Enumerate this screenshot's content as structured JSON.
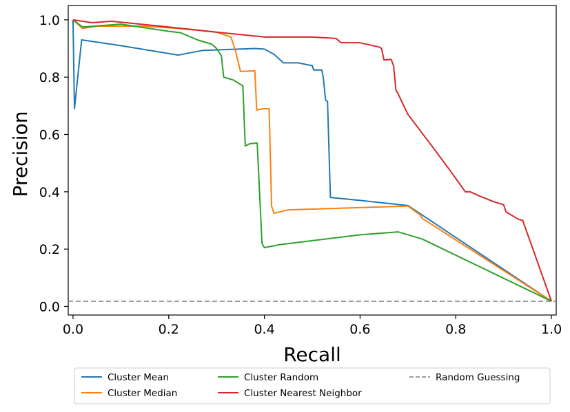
{
  "chart_data": {
    "type": "line",
    "xlabel": "Recall",
    "ylabel": "Precision",
    "xlim": [
      -0.01,
      1.01
    ],
    "ylim": [
      -0.03,
      1.05
    ],
    "xticks": [
      {
        "value": 0.0,
        "label": "0.0"
      },
      {
        "value": 0.2,
        "label": "0.2"
      },
      {
        "value": 0.4,
        "label": "0.4"
      },
      {
        "value": 0.6,
        "label": "0.6"
      },
      {
        "value": 0.8,
        "label": "0.8"
      },
      {
        "value": 1.0,
        "label": "1.0"
      }
    ],
    "yticks": [
      {
        "value": 0.0,
        "label": "0.0"
      },
      {
        "value": 0.2,
        "label": "0.2"
      },
      {
        "value": 0.4,
        "label": "0.4"
      },
      {
        "value": 0.6,
        "label": "0.6"
      },
      {
        "value": 0.8,
        "label": "0.8"
      },
      {
        "value": 1.0,
        "label": "1.0"
      }
    ],
    "grid": false,
    "legend_placement": "below",
    "series": [
      {
        "name": "Cluster Mean",
        "color": "#1f77b4",
        "dashed": false,
        "points": [
          [
            0.0,
            1.0
          ],
          [
            0.003,
            0.69
          ],
          [
            0.018,
            0.93
          ],
          [
            0.1,
            0.91
          ],
          [
            0.22,
            0.877
          ],
          [
            0.27,
            0.893
          ],
          [
            0.38,
            0.9
          ],
          [
            0.4,
            0.898
          ],
          [
            0.42,
            0.88
          ],
          [
            0.44,
            0.85
          ],
          [
            0.47,
            0.85
          ],
          [
            0.5,
            0.84
          ],
          [
            0.503,
            0.825
          ],
          [
            0.52,
            0.825
          ],
          [
            0.523,
            0.8
          ],
          [
            0.528,
            0.72
          ],
          [
            0.532,
            0.715
          ],
          [
            0.538,
            0.38
          ],
          [
            0.6,
            0.37
          ],
          [
            0.7,
            0.352
          ],
          [
            1.0,
            0.018
          ]
        ]
      },
      {
        "name": "Cluster Median",
        "color": "#ff7f0e",
        "dashed": false,
        "points": [
          [
            0.0,
            1.0
          ],
          [
            0.02,
            0.97
          ],
          [
            0.05,
            0.978
          ],
          [
            0.15,
            0.978
          ],
          [
            0.22,
            0.97
          ],
          [
            0.3,
            0.957
          ],
          [
            0.33,
            0.94
          ],
          [
            0.34,
            0.89
          ],
          [
            0.35,
            0.82
          ],
          [
            0.38,
            0.822
          ],
          [
            0.384,
            0.685
          ],
          [
            0.398,
            0.69
          ],
          [
            0.41,
            0.69
          ],
          [
            0.415,
            0.35
          ],
          [
            0.42,
            0.325
          ],
          [
            0.45,
            0.337
          ],
          [
            0.7,
            0.35
          ],
          [
            0.725,
            0.32
          ],
          [
            0.73,
            0.307
          ],
          [
            1.0,
            0.018
          ]
        ]
      },
      {
        "name": "Cluster Random",
        "color": "#2ca02c",
        "dashed": false,
        "points": [
          [
            0.0,
            1.0
          ],
          [
            0.02,
            0.975
          ],
          [
            0.1,
            0.985
          ],
          [
            0.14,
            0.975
          ],
          [
            0.2,
            0.96
          ],
          [
            0.225,
            0.955
          ],
          [
            0.26,
            0.93
          ],
          [
            0.29,
            0.915
          ],
          [
            0.3,
            0.9
          ],
          [
            0.31,
            0.875
          ],
          [
            0.315,
            0.8
          ],
          [
            0.325,
            0.795
          ],
          [
            0.335,
            0.79
          ],
          [
            0.345,
            0.78
          ],
          [
            0.355,
            0.77
          ],
          [
            0.36,
            0.56
          ],
          [
            0.37,
            0.568
          ],
          [
            0.385,
            0.57
          ],
          [
            0.395,
            0.22
          ],
          [
            0.4,
            0.205
          ],
          [
            0.415,
            0.21
          ],
          [
            0.43,
            0.215
          ],
          [
            0.6,
            0.25
          ],
          [
            0.68,
            0.26
          ],
          [
            0.73,
            0.235
          ],
          [
            1.0,
            0.018
          ]
        ]
      },
      {
        "name": "Cluster Nearest Neighbor",
        "color": "#d62728",
        "dashed": false,
        "points": [
          [
            0.0,
            1.0
          ],
          [
            0.04,
            0.99
          ],
          [
            0.08,
            0.995
          ],
          [
            0.2,
            0.975
          ],
          [
            0.3,
            0.957
          ],
          [
            0.4,
            0.94
          ],
          [
            0.5,
            0.94
          ],
          [
            0.55,
            0.935
          ],
          [
            0.56,
            0.92
          ],
          [
            0.6,
            0.92
          ],
          [
            0.64,
            0.905
          ],
          [
            0.645,
            0.9
          ],
          [
            0.65,
            0.86
          ],
          [
            0.665,
            0.862
          ],
          [
            0.67,
            0.84
          ],
          [
            0.675,
            0.755
          ],
          [
            0.68,
            0.74
          ],
          [
            0.7,
            0.67
          ],
          [
            0.75,
            0.56
          ],
          [
            0.79,
            0.47
          ],
          [
            0.82,
            0.4
          ],
          [
            0.83,
            0.4
          ],
          [
            0.85,
            0.385
          ],
          [
            0.88,
            0.365
          ],
          [
            0.9,
            0.355
          ],
          [
            0.905,
            0.33
          ],
          [
            0.93,
            0.305
          ],
          [
            0.94,
            0.3
          ],
          [
            1.0,
            0.018
          ]
        ]
      },
      {
        "name": "Random Guessing",
        "color": "#7f7f7f",
        "dashed": true,
        "points": [
          [
            -0.01,
            0.018
          ],
          [
            1.01,
            0.018
          ]
        ]
      }
    ]
  }
}
